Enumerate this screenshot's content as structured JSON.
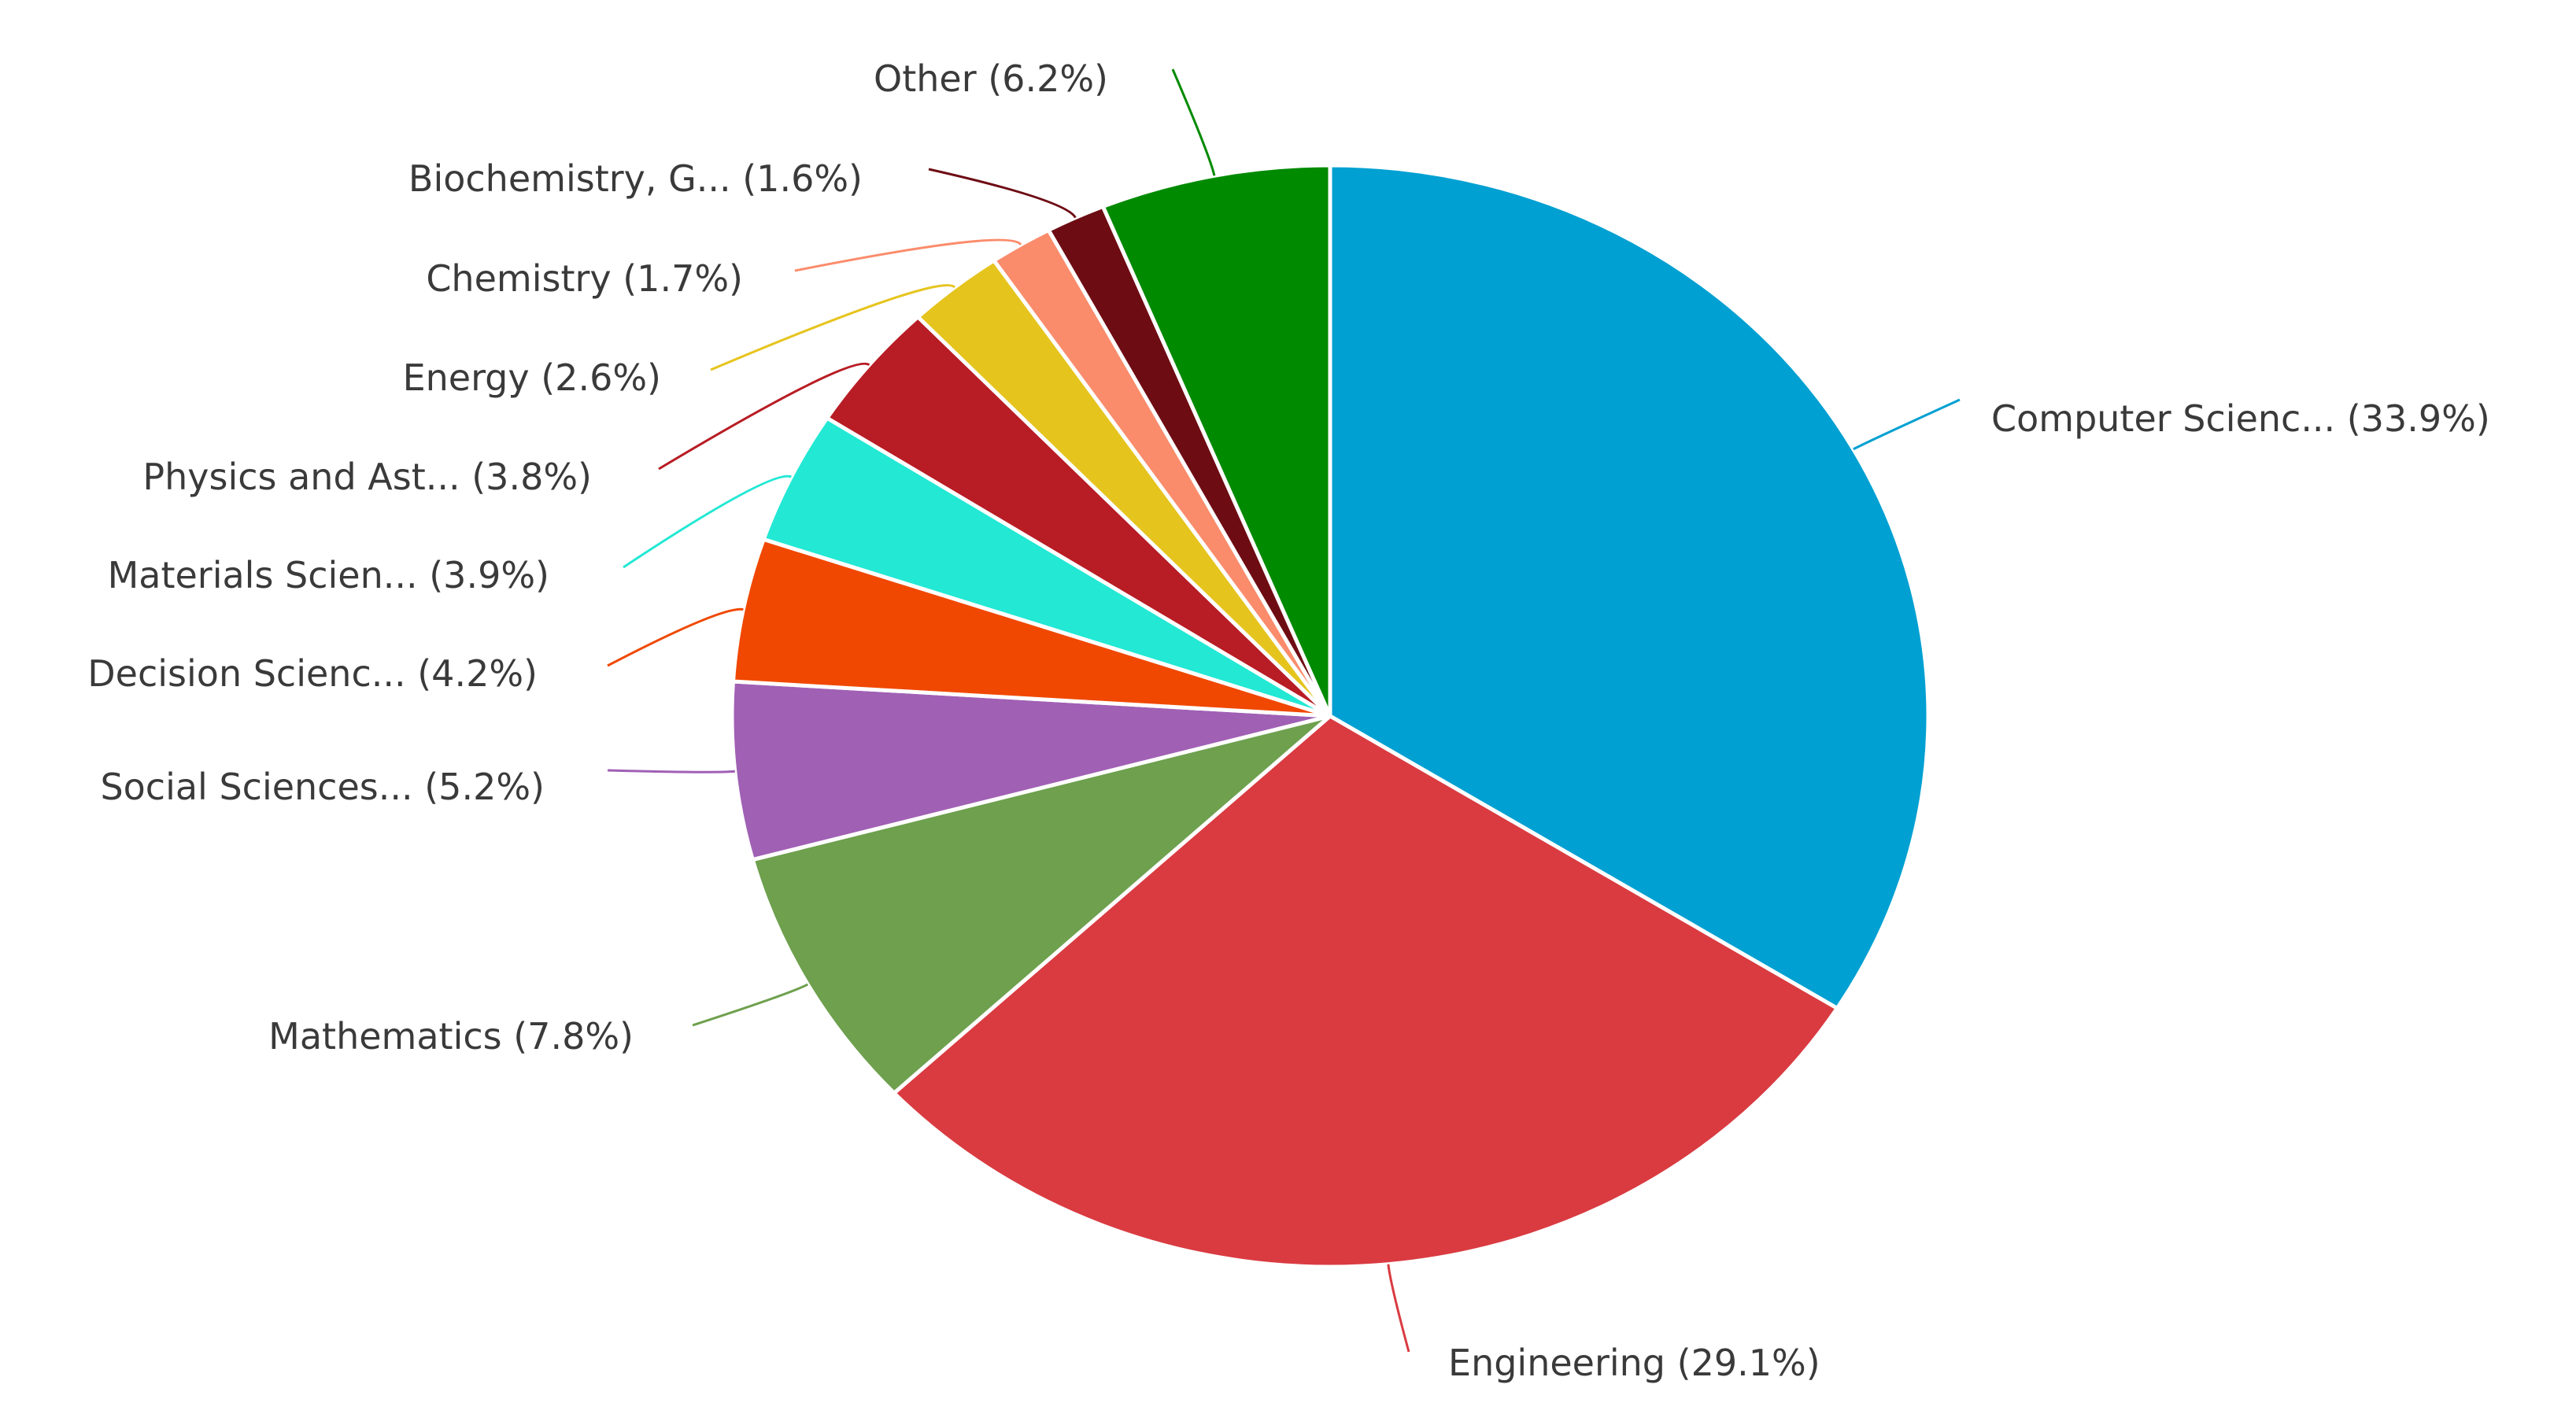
{
  "chart_data": {
    "type": "pie",
    "title": "",
    "start_angle_deg": 0,
    "direction": "clockwise",
    "slices": [
      {
        "name": "Computer Scienc...",
        "value": 33.9,
        "label": "Computer Scienc... (33.9%)",
        "color": "#00a0d2"
      },
      {
        "name": "Engineering",
        "value": 29.1,
        "label": "Engineering (29.1%)",
        "color": "#d93b41"
      },
      {
        "name": "Mathematics",
        "value": 7.8,
        "label": "Mathematics (7.8%)",
        "color": "#6ea04e"
      },
      {
        "name": "Social Sciences...",
        "value": 5.2,
        "label": "Social Sciences... (5.2%)",
        "color": "#a060b4"
      },
      {
        "name": "Decision Scienc...",
        "value": 4.2,
        "label": "Decision Scienc... (4.2%)",
        "color": "#f04800"
      },
      {
        "name": "Materials Scien...",
        "value": 3.9,
        "label": "Materials Scien... (3.9%)",
        "color": "#22e8d4"
      },
      {
        "name": "Physics and Ast...",
        "value": 3.8,
        "label": "Physics and Ast... (3.8%)",
        "color": "#b81c24"
      },
      {
        "name": "Energy",
        "value": 2.6,
        "label": "Energy (2.6%)",
        "color": "#e6c41e"
      },
      {
        "name": "Chemistry",
        "value": 1.7,
        "label": "Chemistry (1.7%)",
        "color": "#fa8c6c"
      },
      {
        "name": "Biochemistry, G...",
        "value": 1.6,
        "label": "Biochemistry, G... (1.6%)",
        "color": "#6e0c14"
      },
      {
        "name": "Other",
        "value": 6.2,
        "label": "Other (6.2%)",
        "color": "#008a00"
      }
    ]
  }
}
